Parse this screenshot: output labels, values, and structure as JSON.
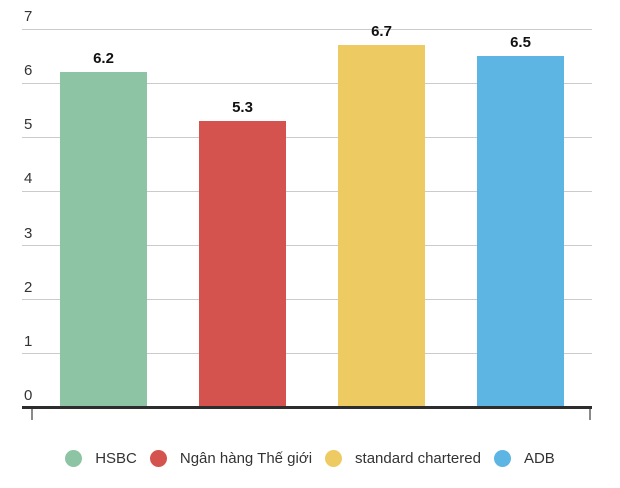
{
  "chart_data": {
    "type": "bar",
    "title": "",
    "xlabel": "",
    "ylabel": "",
    "categories": [
      "HSBC",
      "Ngân hàng Thế giới",
      "standard chartered",
      "ADB"
    ],
    "values": [
      6.2,
      5.3,
      6.7,
      6.5
    ],
    "value_labels": [
      "6.2",
      "5.3",
      "6.7",
      "6.5"
    ],
    "series_colors": [
      "#8dc4a4",
      "#d5534f",
      "#eeca63",
      "#5db5e4"
    ],
    "ylim": [
      0,
      7
    ],
    "y_ticks": [
      0,
      1,
      2,
      3,
      4,
      5,
      6,
      7
    ],
    "y_tick_labels": [
      "0",
      "1",
      "2",
      "3",
      "4",
      "5",
      "6",
      "7"
    ],
    "grid": "horizontal",
    "legend_position": "bottom",
    "legend": [
      {
        "label": "HSBC",
        "color": "#8dc4a4"
      },
      {
        "label": "Ngân hàng Thế giới",
        "color": "#d5534f"
      },
      {
        "label": "standard chartered",
        "color": "#eeca63"
      },
      {
        "label": "ADB",
        "color": "#5db5e4"
      }
    ]
  },
  "style": {
    "background": "#ffffff",
    "grid_color": "#cbcbcb",
    "axis_color": "#2d2d2d",
    "tick_color": "#8a8a8a",
    "axis_label_color": "#333333",
    "value_label_color": "#111111",
    "legend_label_color": "#333333"
  }
}
